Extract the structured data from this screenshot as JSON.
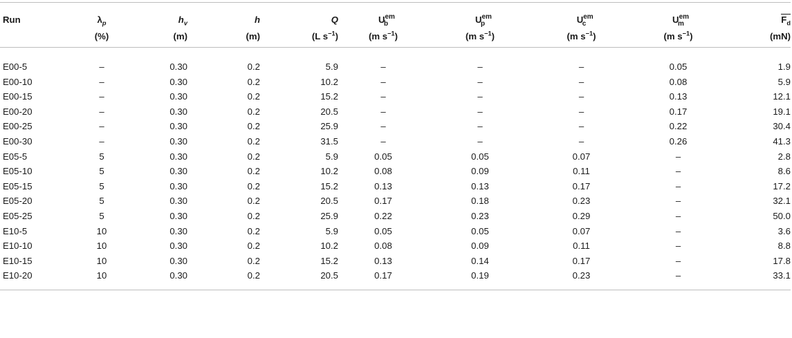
{
  "table": {
    "headers": [
      {
        "sym": "Run",
        "unit": ""
      },
      {
        "sym": "λ",
        "sub": "p",
        "unit": "(%)"
      },
      {
        "sym": "h",
        "sub": "v",
        "unit": "(m)"
      },
      {
        "sym": "h",
        "unit": "(m)"
      },
      {
        "sym": "Q",
        "unit": "(L s",
        "unit_sup": "−1",
        "unit_end": ")"
      },
      {
        "sym": "U",
        "sup": "em",
        "sub": "b",
        "unit": "(m s",
        "unit_sup": "−1",
        "unit_end": ")"
      },
      {
        "sym": "U",
        "sup": "em",
        "sub": "p",
        "unit": "(m s",
        "unit_sup": "−1",
        "unit_end": ")"
      },
      {
        "sym": "U",
        "sup": "em",
        "sub": "c",
        "unit": "(m s",
        "unit_sup": "−1",
        "unit_end": ")"
      },
      {
        "sym": "U",
        "sup": "em",
        "sub": "m",
        "unit": "(m s",
        "unit_sup": "−1",
        "unit_end": ")"
      },
      {
        "sym": "F",
        "sub": "d",
        "unit": "(mN)"
      }
    ],
    "rows": [
      [
        "E00-5",
        "–",
        "0.30",
        "0.2",
        "5.9",
        "–",
        "–",
        "–",
        "0.05",
        "1.9"
      ],
      [
        "E00-10",
        "–",
        "0.30",
        "0.2",
        "10.2",
        "–",
        "–",
        "–",
        "0.08",
        "5.9"
      ],
      [
        "E00-15",
        "–",
        "0.30",
        "0.2",
        "15.2",
        "–",
        "–",
        "–",
        "0.13",
        "12.1"
      ],
      [
        "E00-20",
        "–",
        "0.30",
        "0.2",
        "20.5",
        "–",
        "–",
        "–",
        "0.17",
        "19.1"
      ],
      [
        "E00-25",
        "–",
        "0.30",
        "0.2",
        "25.9",
        "–",
        "–",
        "–",
        "0.22",
        "30.4"
      ],
      [
        "E00-30",
        "–",
        "0.30",
        "0.2",
        "31.5",
        "–",
        "–",
        "–",
        "0.26",
        "41.3"
      ],
      [
        "E05-5",
        "5",
        "0.30",
        "0.2",
        "5.9",
        "0.05",
        "0.05",
        "0.07",
        "–",
        "2.8"
      ],
      [
        "E05-10",
        "5",
        "0.30",
        "0.2",
        "10.2",
        "0.08",
        "0.09",
        "0.11",
        "–",
        "8.6"
      ],
      [
        "E05-15",
        "5",
        "0.30",
        "0.2",
        "15.2",
        "0.13",
        "0.13",
        "0.17",
        "–",
        "17.2"
      ],
      [
        "E05-20",
        "5",
        "0.30",
        "0.2",
        "20.5",
        "0.17",
        "0.18",
        "0.23",
        "–",
        "32.1"
      ],
      [
        "E05-25",
        "5",
        "0.30",
        "0.2",
        "25.9",
        "0.22",
        "0.23",
        "0.29",
        "–",
        "50.0"
      ],
      [
        "E10-5",
        "10",
        "0.30",
        "0.2",
        "5.9",
        "0.05",
        "0.05",
        "0.07",
        "–",
        "3.6"
      ],
      [
        "E10-10",
        "10",
        "0.30",
        "0.2",
        "10.2",
        "0.08",
        "0.09",
        "0.11",
        "–",
        "8.8"
      ],
      [
        "E10-15",
        "10",
        "0.30",
        "0.2",
        "15.2",
        "0.13",
        "0.14",
        "0.17",
        "–",
        "17.8"
      ],
      [
        "E10-20",
        "10",
        "0.30",
        "0.2",
        "20.5",
        "0.17",
        "0.19",
        "0.23",
        "–",
        "33.1"
      ]
    ]
  }
}
